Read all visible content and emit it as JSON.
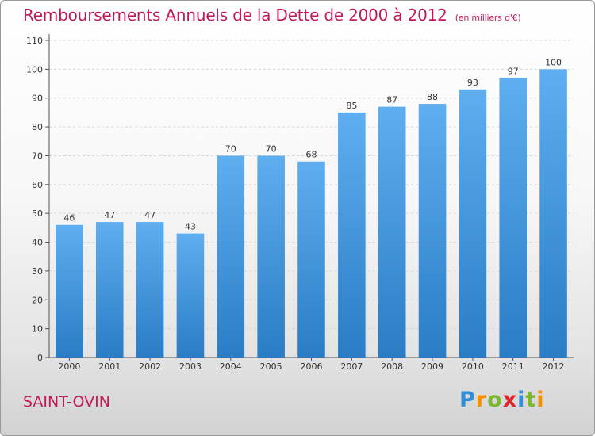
{
  "chart_data": {
    "type": "bar",
    "title": "Remboursements Annuels de la Dette de 2000 à 2012",
    "subtitle": "(en milliers d'€)",
    "xlabel": "",
    "ylabel": "",
    "categories": [
      "2000",
      "2001",
      "2002",
      "2003",
      "2004",
      "2005",
      "2006",
      "2007",
      "2008",
      "2009",
      "2010",
      "2011",
      "2012"
    ],
    "values": [
      46,
      47,
      47,
      43,
      70,
      70,
      68,
      85,
      87,
      88,
      93,
      97,
      100
    ],
    "ylim": [
      0,
      110
    ],
    "yticks": [
      0,
      10,
      20,
      30,
      40,
      50,
      60,
      70,
      80,
      90,
      100,
      110
    ],
    "grid": true,
    "bar_color": "#4a9de0"
  },
  "footer": {
    "commune": "SAINT-OVIN",
    "brand_letters": [
      "P",
      "r",
      "o",
      "x",
      "i",
      "t",
      "i"
    ]
  }
}
